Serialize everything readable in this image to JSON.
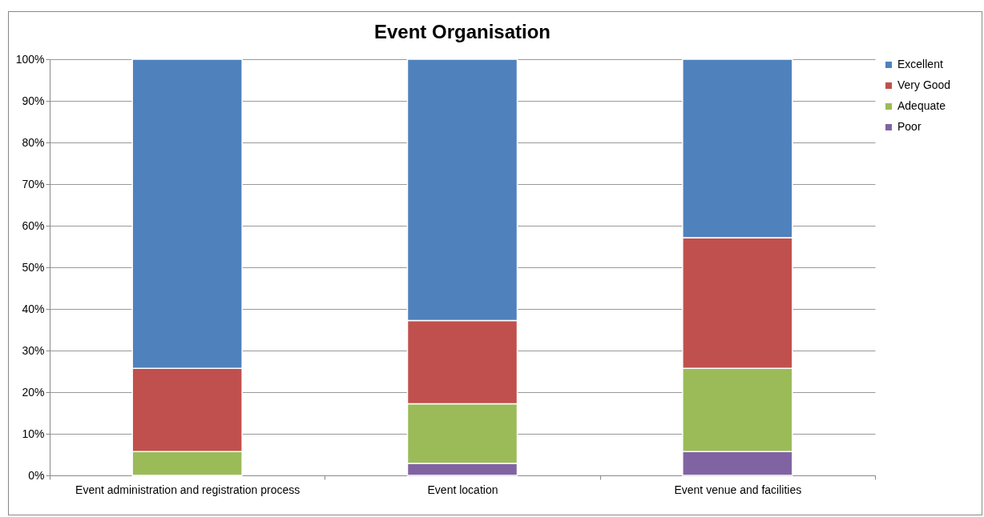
{
  "chart_data": {
    "type": "bar",
    "title": "Event Organisation",
    "stacked": true,
    "categories": [
      "Event administration and registration process",
      "Event location",
      "Event venue and facilities"
    ],
    "series": [
      {
        "name": "Poor",
        "color": "#8064a2",
        "values": [
          0,
          2.9,
          5.7
        ]
      },
      {
        "name": "Adequate",
        "color": "#9bbb59",
        "values": [
          5.7,
          14.3,
          20
        ]
      },
      {
        "name": "Very Good",
        "color": "#c0504d",
        "values": [
          20,
          20,
          31.4
        ]
      },
      {
        "name": "Excellent",
        "color": "#4f81bd",
        "values": [
          74.3,
          62.8,
          42.9
        ]
      }
    ],
    "ylim": [
      0,
      100
    ],
    "yticks": [
      {
        "value": 0,
        "label": "0%"
      },
      {
        "value": 10,
        "label": "10%"
      },
      {
        "value": 20,
        "label": "20%"
      },
      {
        "value": 30,
        "label": "30%"
      },
      {
        "value": 40,
        "label": "40%"
      },
      {
        "value": 50,
        "label": "50%"
      },
      {
        "value": 60,
        "label": "60%"
      },
      {
        "value": 70,
        "label": "70%"
      },
      {
        "value": 80,
        "label": "80%"
      },
      {
        "value": 90,
        "label": "90%"
      },
      {
        "value": 100,
        "label": "100%"
      }
    ],
    "grid": "y",
    "legend": "right"
  }
}
